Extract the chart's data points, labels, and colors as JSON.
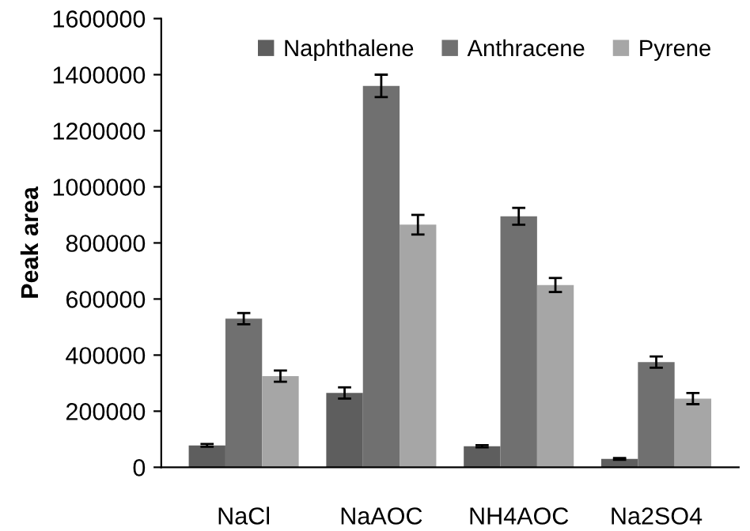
{
  "chart_data": {
    "type": "bar",
    "ylabel": "Peak area",
    "categories": [
      "NaCl",
      "NaAOC",
      "NH4AOC",
      "Na2SO4"
    ],
    "series": [
      {
        "name": "Naphthalene",
        "color": "#5e5e5e",
        "values": [
          78000,
          265000,
          75000,
          30000
        ],
        "errors": [
          5000,
          20000,
          4000,
          3000
        ]
      },
      {
        "name": "Anthracene",
        "color": "#707070",
        "values": [
          530000,
          1360000,
          895000,
          375000
        ],
        "errors": [
          20000,
          40000,
          30000,
          20000
        ]
      },
      {
        "name": "Pyrene",
        "color": "#a6a6a6",
        "values": [
          325000,
          865000,
          650000,
          245000
        ],
        "errors": [
          20000,
          35000,
          25000,
          20000
        ]
      }
    ],
    "ylim": [
      0,
      1600000
    ],
    "yticks": [
      0,
      200000,
      400000,
      600000,
      800000,
      1000000,
      1200000,
      1400000,
      1600000
    ],
    "grid": false,
    "legend": "top"
  }
}
